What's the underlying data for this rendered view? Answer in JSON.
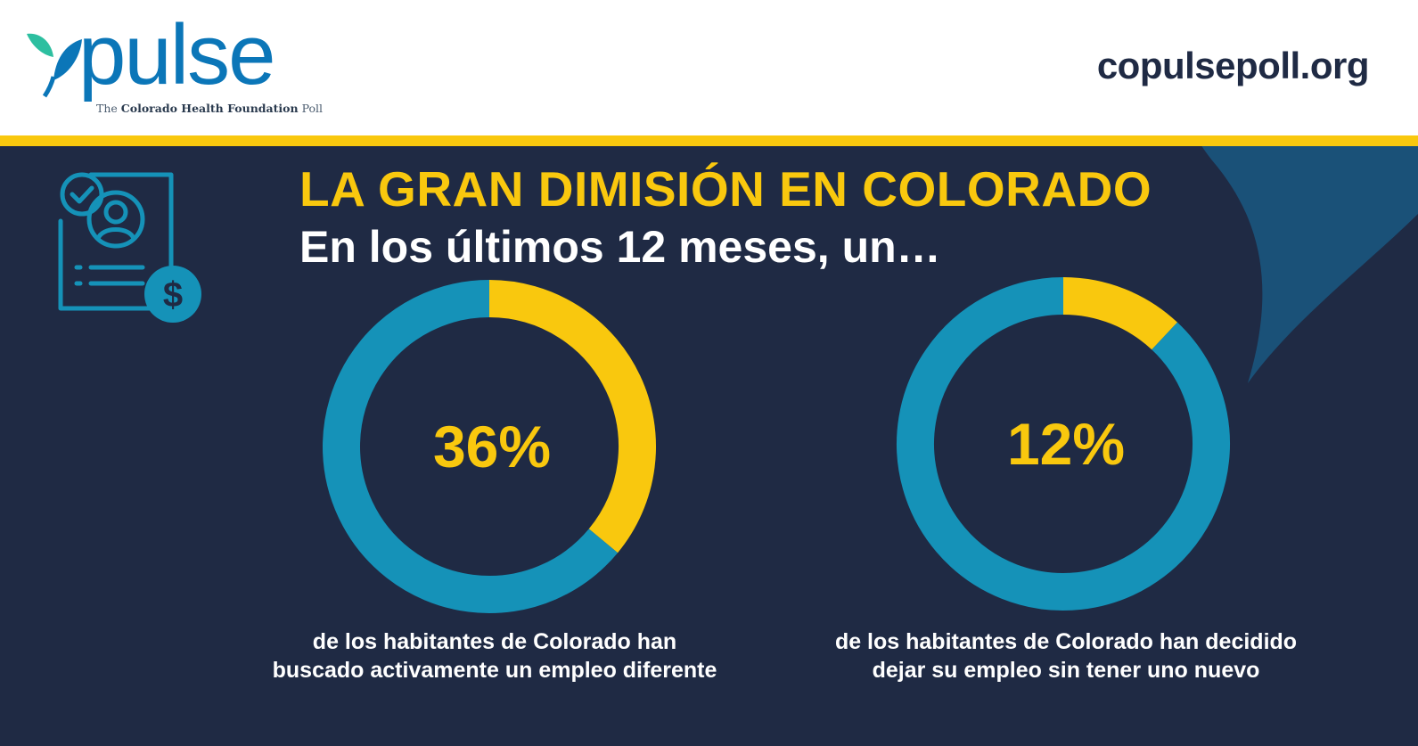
{
  "header": {
    "logo_text": "pulse",
    "logo_subtitle_prefix": "The",
    "logo_subtitle_main": "Colorado Health Foundation",
    "logo_subtitle_suffix": "Poll",
    "website": "copulsepoll.org"
  },
  "colors": {
    "background": "#1f2a44",
    "accent_gold": "#f9c80e",
    "ring_blue": "#1592b8",
    "logo_blue": "#0b76b8"
  },
  "icons": {
    "document_icon": "profile-document-with-check-and-dollar-icon"
  },
  "title": "LA GRAN DIMISIÓN EN COLORADO",
  "subtitle": "En los últimos 12 meses, un…",
  "chart_data": [
    {
      "type": "pie",
      "variant": "donut",
      "values": [
        36,
        64
      ],
      "highlight_value_label": "36%",
      "caption_line1": "de los habitantes de Colorado han",
      "caption_line2": "buscado activamente un empleo diferente",
      "colors": [
        "#f9c80e",
        "#1592b8"
      ]
    },
    {
      "type": "pie",
      "variant": "donut",
      "values": [
        12,
        88
      ],
      "highlight_value_label": "12%",
      "caption_line1": "de los habitantes de Colorado han decidido",
      "caption_line2": "dejar su empleo sin tener uno nuevo",
      "colors": [
        "#f9c80e",
        "#1592b8"
      ]
    }
  ]
}
